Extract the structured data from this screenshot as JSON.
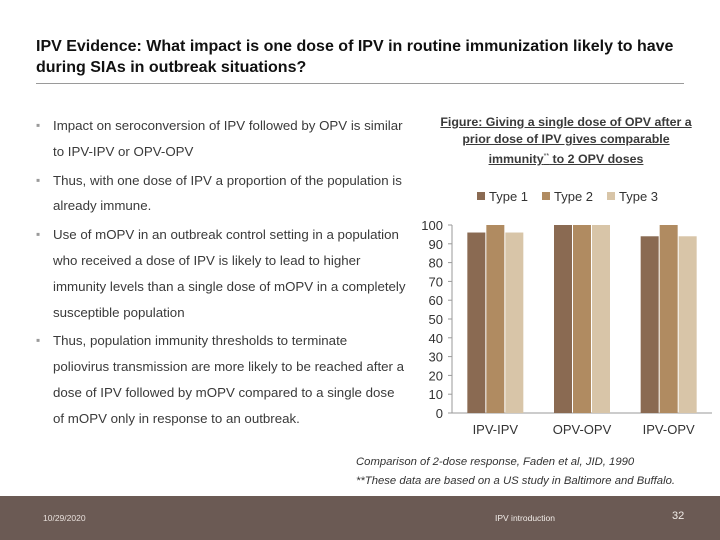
{
  "slide": {
    "title": "IPV Evidence: What impact is one dose of IPV in routine immunization likely to have during SIAs in outbreak situations?",
    "bullets": [
      "Impact on seroconversion of IPV followed by OPV is similar to IPV-IPV or OPV-OPV",
      "Thus, with one dose of IPV a proportion of the population is already immune.",
      "Use of mOPV in an outbreak control setting in a population who received a dose of IPV is likely to lead to higher immunity levels than a single dose of mOPV in a completely susceptible population",
      "Thus, population immunity thresholds to terminate poliovirus transmission are more likely to be reached after a dose of IPV followed by mOPV compared to a single dose of mOPV only in response to an outbreak."
    ],
    "figure_title_main": "Figure: Giving a single dose of OPV after a prior dose of IPV gives comparable immunity",
    "figure_title_sup": "**",
    "figure_title_tail": " to 2 OPV doses",
    "caption_line1": "Comparison of 2-dose response, Faden et al, JID, 1990",
    "caption_line2": "**These data are based on a US study in Baltimore and Buffalo."
  },
  "footer": {
    "date": "10/29/2020",
    "center": "IPV introduction",
    "page": "32"
  },
  "chart_data": {
    "type": "bar",
    "categories": [
      "IPV-IPV",
      "OPV-OPV",
      "IPV-OPV"
    ],
    "series": [
      {
        "name": "Type 1",
        "values": [
          96,
          100,
          94
        ],
        "color": "#8a6a52"
      },
      {
        "name": "Type 2",
        "values": [
          100,
          100,
          100
        ],
        "color": "#b08b61"
      },
      {
        "name": "Type 3",
        "values": [
          96,
          100,
          94
        ],
        "color": "#d8c5a8"
      }
    ],
    "y_ticks": [
      0,
      10,
      20,
      30,
      40,
      50,
      60,
      70,
      80,
      90,
      100
    ],
    "ylim": [
      0,
      100
    ],
    "legend_position": "top",
    "grid": false
  }
}
